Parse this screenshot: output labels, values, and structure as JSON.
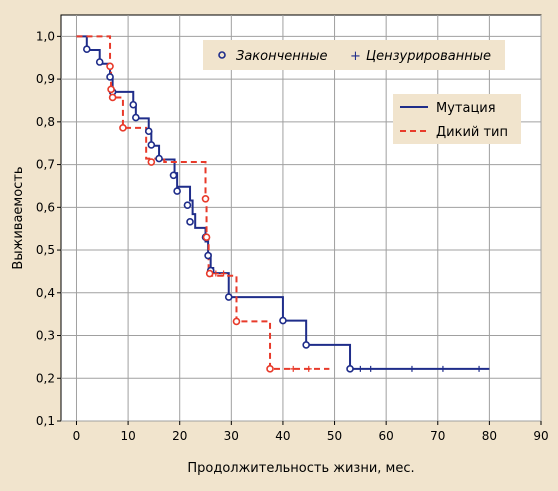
{
  "chart_data": {
    "type": "line",
    "xlabel": "Продолжительность жизни, мес.",
    "ylabel": "Выживаемость",
    "xlim": [
      -3,
      90
    ],
    "ylim": [
      0.1,
      1.05
    ],
    "xticks": [
      0,
      10,
      20,
      30,
      40,
      50,
      60,
      70,
      80,
      90
    ],
    "yticks": [
      0.1,
      0.2,
      0.3,
      0.4,
      0.5,
      0.6,
      0.7,
      0.8,
      0.9,
      1.0
    ],
    "xtick_labels": [
      "0",
      "10",
      "20",
      "30",
      "40",
      "50",
      "60",
      "70",
      "80",
      "90"
    ],
    "ytick_labels": [
      "0,1",
      "0,2",
      "0,3",
      "0,4",
      "0,5",
      "0,6",
      "0,7",
      "0,8",
      "0,9",
      "1,0"
    ],
    "grid": true,
    "marker_legend": {
      "position": "top-right",
      "completed_label": "Законченные",
      "censored_label": "Цензурированные"
    },
    "line_legend": {
      "position": "upper-right"
    },
    "series": [
      {
        "name": "Мутация",
        "color": "#1f2d8a",
        "style": "solid",
        "steps": [
          [
            0,
            1.0
          ],
          [
            2,
            0.968
          ],
          [
            4.5,
            0.936
          ],
          [
            6.5,
            0.904
          ],
          [
            7,
            0.87
          ],
          [
            11,
            0.84
          ],
          [
            11.5,
            0.808
          ],
          [
            14,
            0.776
          ],
          [
            14.5,
            0.744
          ],
          [
            16,
            0.712
          ],
          [
            19,
            0.68
          ],
          [
            19.5,
            0.648
          ],
          [
            22,
            0.616
          ],
          [
            22.5,
            0.584
          ],
          [
            23,
            0.552
          ],
          [
            25,
            0.52
          ],
          [
            25.5,
            0.49
          ],
          [
            26,
            0.458
          ],
          [
            26.5,
            0.446
          ],
          [
            29.5,
            0.39
          ],
          [
            40,
            0.335
          ],
          [
            44.5,
            0.278
          ],
          [
            53,
            0.222
          ],
          [
            80,
            0.222
          ]
        ],
        "completed_points": [
          [
            2,
            0.97
          ],
          [
            4.5,
            0.94
          ],
          [
            6.5,
            0.905
          ],
          [
            7,
            0.87
          ],
          [
            11,
            0.84
          ],
          [
            11.5,
            0.81
          ],
          [
            14,
            0.778
          ],
          [
            14.5,
            0.746
          ],
          [
            16,
            0.714
          ],
          [
            18.8,
            0.675
          ],
          [
            19.5,
            0.638
          ],
          [
            21.5,
            0.605
          ],
          [
            22,
            0.566
          ],
          [
            25,
            0.53
          ],
          [
            25.5,
            0.487
          ],
          [
            26,
            0.452
          ],
          [
            29.5,
            0.39
          ],
          [
            40,
            0.335
          ],
          [
            44.5,
            0.278
          ],
          [
            53,
            0.222
          ]
        ],
        "censored_points": [
          [
            55,
            0.222
          ],
          [
            57,
            0.222
          ],
          [
            65,
            0.222
          ],
          [
            71,
            0.222
          ],
          [
            78,
            0.222
          ]
        ]
      },
      {
        "name": "Дикий тип",
        "color": "#e83a2a",
        "style": "dashed",
        "steps": [
          [
            0,
            1.0
          ],
          [
            6.5,
            0.93
          ],
          [
            6.7,
            0.878
          ],
          [
            7,
            0.857
          ],
          [
            9,
            0.786
          ],
          [
            13.5,
            0.714
          ],
          [
            17,
            0.706
          ],
          [
            25,
            0.62
          ],
          [
            25.2,
            0.53
          ],
          [
            25.6,
            0.44
          ],
          [
            31,
            0.333
          ],
          [
            37.5,
            0.222
          ],
          [
            49,
            0.222
          ]
        ],
        "completed_points": [
          [
            6.5,
            0.93
          ],
          [
            6.7,
            0.876
          ],
          [
            7,
            0.857
          ],
          [
            9,
            0.786
          ],
          [
            14.5,
            0.706
          ],
          [
            25,
            0.62
          ],
          [
            25.2,
            0.53
          ],
          [
            25.8,
            0.445
          ],
          [
            31,
            0.333
          ],
          [
            37.5,
            0.222
          ]
        ],
        "censored_points": [
          [
            27,
            0.445
          ],
          [
            28.5,
            0.445
          ],
          [
            42,
            0.222
          ],
          [
            45,
            0.222
          ]
        ]
      }
    ]
  }
}
